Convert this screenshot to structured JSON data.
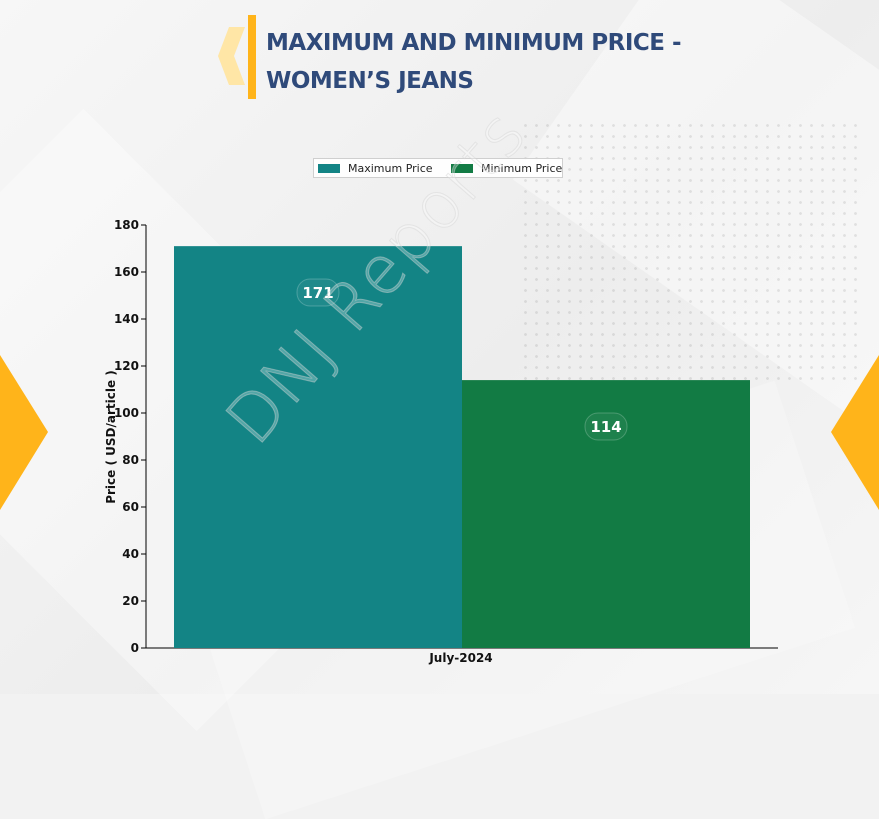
{
  "header": {
    "title_line1": "MAXIMUM AND MINIMUM PRICE -",
    "title_line2": "WOMEN’S JEANS"
  },
  "legend": {
    "items": [
      {
        "label": "Maximum Price",
        "color": "#138485"
      },
      {
        "label": "Minimum Price",
        "color": "#127b44"
      }
    ]
  },
  "watermark": "DNJ Reports",
  "colors": {
    "accent": "#ffb41a",
    "title": "#2f4a7a"
  },
  "chart_data": {
    "type": "bar",
    "categories": [
      "July-2024"
    ],
    "series": [
      {
        "name": "Maximum Price",
        "values": [
          171
        ],
        "color": "#138485"
      },
      {
        "name": "Minimum Price",
        "values": [
          114
        ],
        "color": "#127b44"
      }
    ],
    "title": "MAXIMUM AND MINIMUM PRICE - WOMEN’S JEANS",
    "xlabel": "",
    "ylabel": "Price ( USD/article )",
    "ylim": [
      0,
      180
    ],
    "yticks": [
      0,
      20,
      40,
      60,
      80,
      100,
      120,
      140,
      160,
      180
    ],
    "grid": false,
    "legend_position": "top-center",
    "data_labels": [
      "171",
      "114"
    ]
  }
}
